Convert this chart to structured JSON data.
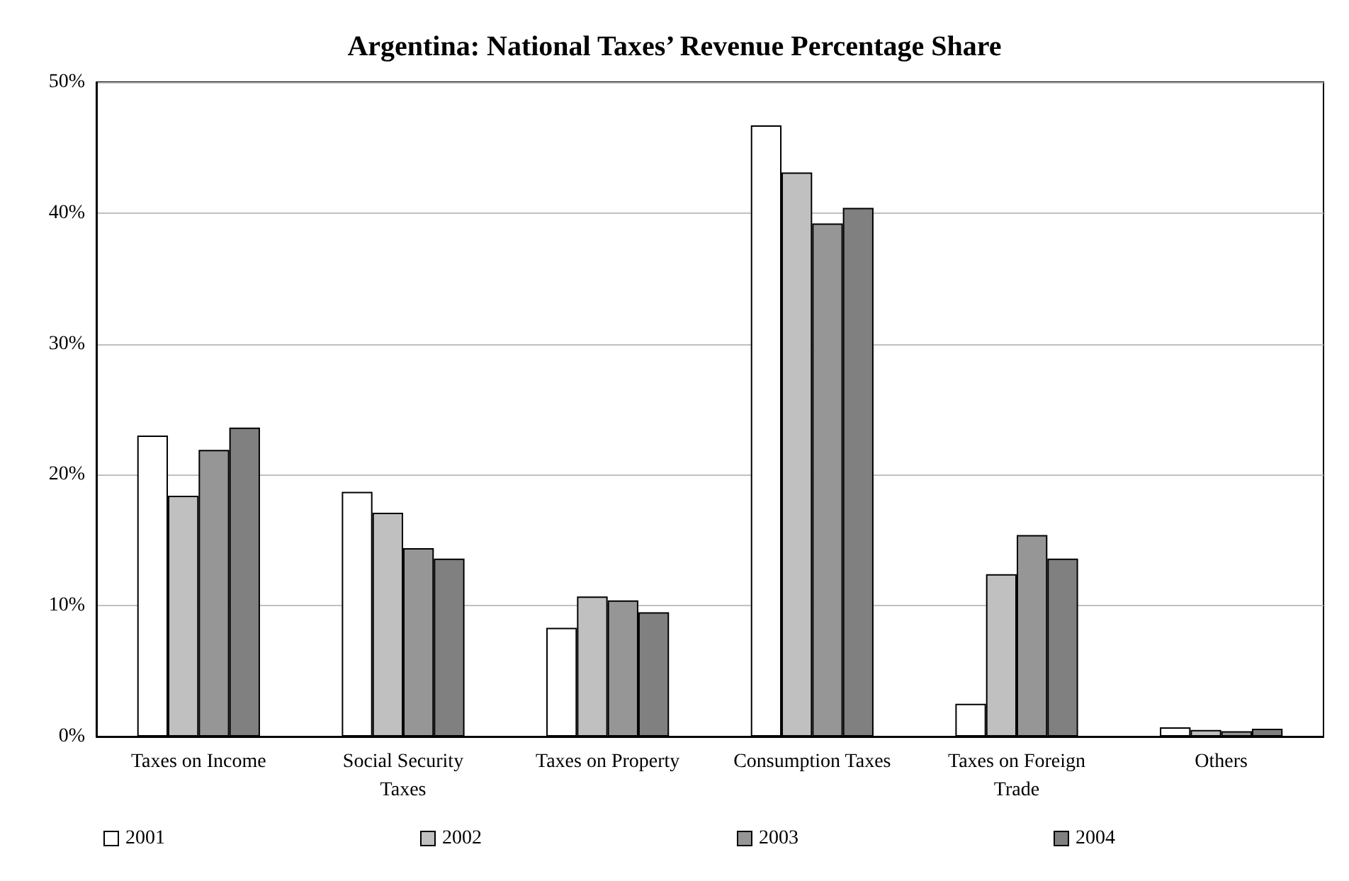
{
  "chart_data": {
    "type": "bar",
    "title": "Argentina: National Taxes’ Revenue Percentage Share",
    "categories": [
      "Taxes on Income",
      "Social Security Taxes",
      "Taxes on Property",
      "Consumption Taxes",
      "Taxes on Foreign Trade",
      "Others"
    ],
    "series": [
      {
        "name": "2001",
        "color": "#ffffff",
        "values": [
          23.0,
          18.7,
          8.3,
          46.7,
          2.5,
          0.7
        ]
      },
      {
        "name": "2002",
        "color": "#c0c0c0",
        "values": [
          18.4,
          17.1,
          10.7,
          43.1,
          12.4,
          0.5
        ]
      },
      {
        "name": "2003",
        "color": "#969696",
        "values": [
          21.9,
          14.4,
          10.4,
          39.2,
          15.4,
          0.4
        ]
      },
      {
        "name": "2004",
        "color": "#808080",
        "values": [
          23.6,
          13.6,
          9.5,
          40.4,
          13.6,
          0.6
        ]
      }
    ],
    "ylim": [
      0,
      50
    ],
    "yticks": [
      {
        "value": 0,
        "label": "0%"
      },
      {
        "value": 10,
        "label": "10%"
      },
      {
        "value": 20,
        "label": "20%"
      },
      {
        "value": 30,
        "label": "30%"
      },
      {
        "value": 40,
        "label": "40%"
      },
      {
        "value": 50,
        "label": "50%"
      }
    ],
    "grid": "y",
    "legend": "bottom"
  }
}
